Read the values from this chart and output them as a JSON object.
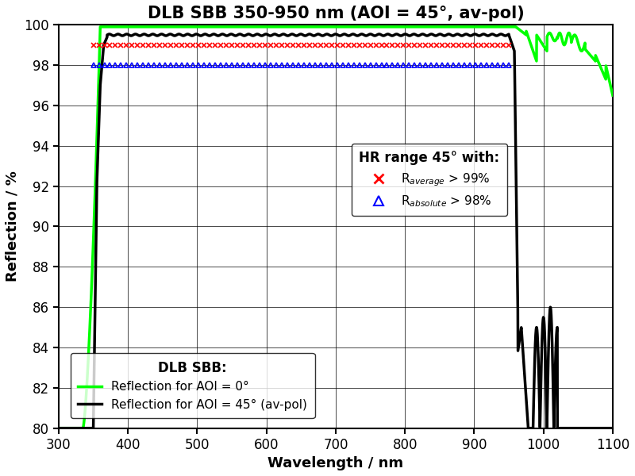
{
  "title": "DLB SBB 350-950 nm (AOI = 45°, av-pol)",
  "xlabel": "Wavelength / nm",
  "ylabel": "Reflection / %",
  "xlim": [
    300,
    1100
  ],
  "ylim": [
    80,
    100
  ],
  "yticks": [
    80,
    82,
    84,
    86,
    88,
    90,
    92,
    94,
    96,
    98,
    100
  ],
  "xticks": [
    300,
    400,
    500,
    600,
    700,
    800,
    900,
    1000,
    1100
  ],
  "green_color": "#00FF00",
  "black_color": "#000000",
  "red_color": "#FF0000",
  "blue_color": "#0000FF",
  "r_average_value": 99.0,
  "r_absolute_value": 98.0,
  "hr_range_start": 350,
  "hr_range_end": 950,
  "legend1_title": "HR range 45° with:",
  "legend1_r_avg_label": "R$_{average}$ > 99%",
  "legend1_r_abs_label": "R$_{absolute}$ > 98%",
  "legend2_title": "DLB SBB:",
  "legend2_green_label": "Reflection for AOI = 0°",
  "legend2_black_label": "Reflection for AOI = 45° (av-pol)",
  "title_fontsize": 15,
  "axis_label_fontsize": 13,
  "tick_fontsize": 12
}
